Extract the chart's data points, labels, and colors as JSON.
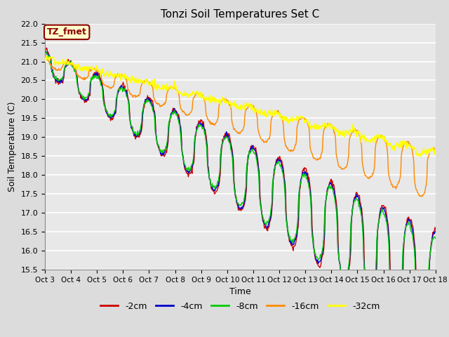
{
  "title": "Tonzi Soil Temperatures Set C",
  "xlabel": "Time",
  "ylabel": "Soil Temperature (C)",
  "ylim": [
    15.5,
    22.0
  ],
  "background_color": "#dcdcdc",
  "plot_bg_color": "#e8e8e8",
  "grid_color": "white",
  "colors": {
    "-2cm": "#cc0000",
    "-4cm": "#0000cc",
    "-8cm": "#00cc00",
    "-16cm": "#ff8800",
    "-32cm": "#ffff00"
  },
  "annotation_label": "TZ_fmet",
  "x_tick_labels": [
    "Oct 3",
    "Oct 4",
    "Oct 5",
    "Oct 6",
    "Oct 7",
    "Oct 8",
    "Oct 9",
    "Oct 10",
    "Oct 11",
    "Oct 12",
    "Oct 13",
    "Oct 14",
    "Oct 15",
    "Oct 16",
    "Oct 17",
    "Oct 18"
  ],
  "num_days": 15,
  "points_per_day": 48
}
